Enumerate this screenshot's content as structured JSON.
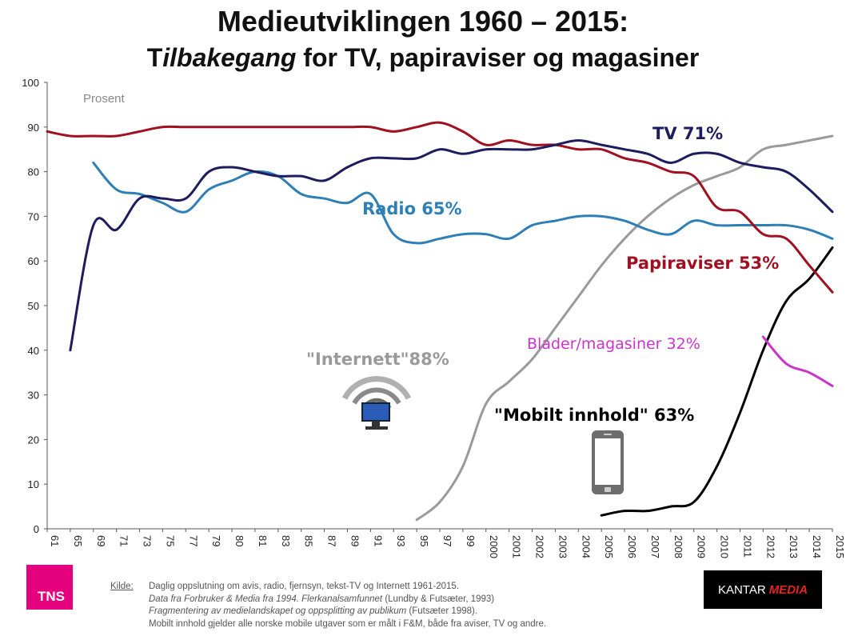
{
  "title": "Medieutviklingen 1960 – 2015:",
  "subtitle": {
    "part1": "T",
    "part2": "ilbakegang",
    "part3": " for TV, papiraviser og magasiner"
  },
  "source": {
    "label": "Kilde:",
    "line1": "Daglig oppslutning om avis, radio, fjernsyn, tekst-TV og Internett 1961-2015.",
    "line2_italic": "Data fra Forbruker & Media fra 1994. Flerkanalsamfunnet",
    "line2_rest": " (Lundby & Futsæter, 1993)",
    "line3_italic": "Fragmentering av medielandskapet og oppsplitting av publikum",
    "line3_rest": " (Futsæter 1998).",
    "line4": "Mobilt innhold gjelder alle norske mobile utgaver som er målt i F&M, både fra aviser, TV og andre."
  },
  "logos": {
    "tns": "TNS",
    "kantar": "KANTAR",
    "kantar_media": "MEDIA"
  },
  "colors": {
    "tv": "#1c1c5e",
    "radio": "#2e7fb5",
    "papir": "#a01020",
    "internett": "#9a9a9a",
    "mobil": "#000000",
    "blader": "#cc33cc"
  },
  "icons": [
    "wifi-monitor-icon",
    "mobile-phone-icon"
  ],
  "chart_data": {
    "type": "line",
    "title": "Medieutviklingen 1960 – 2015:",
    "ylabel": "Prosent",
    "ylim": [
      0,
      100
    ],
    "yticks": [
      "0",
      "10",
      "20",
      "30",
      "40",
      "50",
      "60",
      "70",
      "80",
      "90",
      "100"
    ],
    "categories": [
      "61",
      "65",
      "69",
      "71",
      "73",
      "75",
      "77",
      "79",
      "80",
      "81",
      "83",
      "85",
      "87",
      "89",
      "91",
      "93",
      "95",
      "97",
      "99",
      "2000",
      "2001",
      "2002",
      "2003",
      "2004",
      "2005",
      "2006",
      "2007",
      "2008",
      "2009",
      "2010",
      "2011",
      "2012",
      "2013",
      "2014",
      "2015"
    ],
    "grid": false,
    "series": [
      {
        "key": "papir",
        "name": "Papiraviser 53%",
        "label": "Papiraviser 53%",
        "color": "#a01020",
        "values": [
          89,
          88,
          88,
          88,
          89,
          90,
          90,
          90,
          90,
          90,
          90,
          90,
          90,
          90,
          90,
          89,
          90,
          91,
          89,
          86,
          87,
          86,
          86,
          85,
          85,
          83,
          82,
          80,
          79,
          72,
          71,
          66,
          65,
          59,
          53
        ]
      },
      {
        "key": "tv",
        "name": "TV 71%",
        "label": "TV 71%",
        "color": "#1c1c5e",
        "values": [
          null,
          40,
          68,
          67,
          74,
          74,
          74,
          80,
          81,
          80,
          79,
          79,
          78,
          81,
          83,
          83,
          83,
          85,
          84,
          85,
          85,
          85,
          86,
          87,
          86,
          85,
          84,
          82,
          84,
          84,
          82,
          81,
          80,
          76,
          71
        ]
      },
      {
        "key": "radio",
        "name": "Radio 65%",
        "label": "Radio 65%",
        "color": "#2e7fb5",
        "values": [
          null,
          null,
          82,
          76,
          75,
          73,
          71,
          76,
          78,
          80,
          79,
          75,
          74,
          73,
          75,
          66,
          64,
          65,
          66,
          66,
          65,
          68,
          69,
          70,
          70,
          69,
          67,
          66,
          69,
          68,
          68,
          68,
          68,
          67,
          65
        ]
      },
      {
        "key": "internett",
        "name": "\"Internett\"88%",
        "label": "\"Internett\"88%",
        "color": "#9a9a9a",
        "values": [
          null,
          null,
          null,
          null,
          null,
          null,
          null,
          null,
          null,
          null,
          null,
          null,
          null,
          null,
          null,
          null,
          2,
          6,
          14,
          28,
          33,
          38,
          45,
          52,
          59,
          65,
          70,
          74,
          77,
          79,
          81,
          85,
          86,
          87,
          88
        ]
      },
      {
        "key": "mobil",
        "name": "\"Mobilt innhold\" 63%",
        "label": "\"Mobilt innhold\" 63%",
        "color": "#000000",
        "values": [
          null,
          null,
          null,
          null,
          null,
          null,
          null,
          null,
          null,
          null,
          null,
          null,
          null,
          null,
          null,
          null,
          null,
          null,
          null,
          null,
          null,
          null,
          null,
          null,
          3,
          4,
          4,
          5,
          6,
          14,
          26,
          40,
          51,
          56,
          63
        ]
      },
      {
        "key": "blader",
        "name": "Blader/magasiner 32%",
        "label": "Blader/magasiner 32%",
        "color": "#cc33cc",
        "values": [
          null,
          null,
          null,
          null,
          null,
          null,
          null,
          null,
          null,
          null,
          null,
          null,
          null,
          null,
          null,
          null,
          null,
          null,
          null,
          null,
          null,
          null,
          null,
          null,
          null,
          null,
          null,
          null,
          null,
          null,
          null,
          43,
          37,
          35,
          32
        ]
      }
    ]
  }
}
